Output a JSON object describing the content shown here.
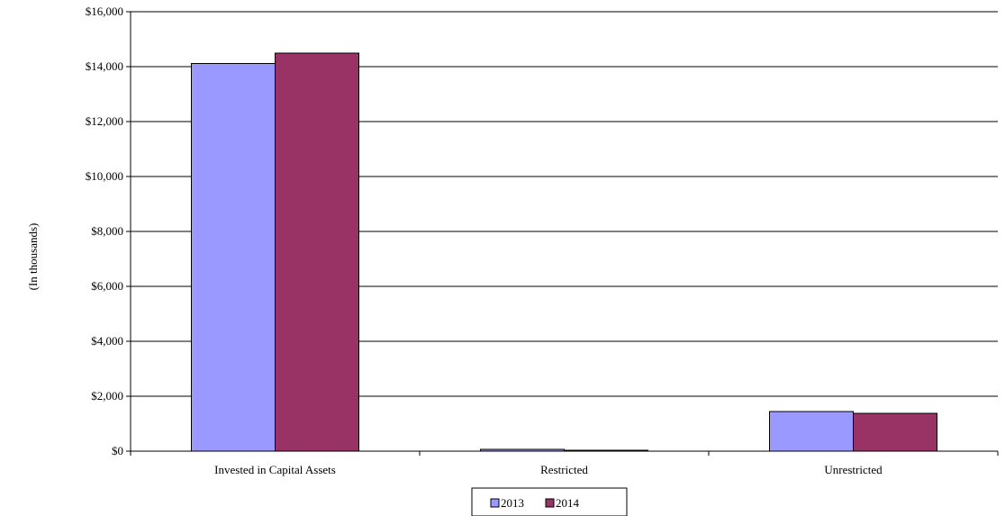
{
  "chart_data": {
    "type": "bar",
    "title": "",
    "xlabel": "",
    "ylabel": "(In thousands)",
    "categories": [
      "Invested in Capital Assets",
      "Restricted",
      "Unrestricted"
    ],
    "series": [
      {
        "name": "2013",
        "values": [
          14120,
          60,
          1450
        ],
        "color": "#9999FF"
      },
      {
        "name": "2014",
        "values": [
          14500,
          30,
          1380
        ],
        "color": "#993366"
      }
    ],
    "ylim": [
      0,
      16000
    ],
    "yticks": [
      0,
      2000,
      4000,
      6000,
      8000,
      10000,
      12000,
      14000,
      16000
    ],
    "ytick_labels": [
      "$0",
      "$2,000",
      "$4,000",
      "$6,000",
      "$8,000",
      "$10,000",
      "$12,000",
      "$14,000",
      "$16,000"
    ],
    "grid": true,
    "legend_position": "bottom-center"
  }
}
